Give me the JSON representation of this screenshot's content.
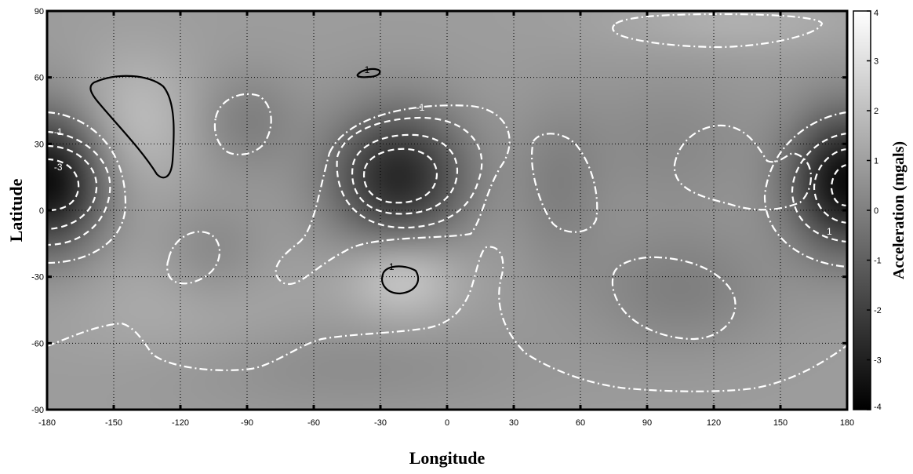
{
  "chart_data": {
    "type": "heatmap",
    "title": "",
    "xlabel": "Longitude",
    "ylabel": "Latitude",
    "xlim": [
      -180,
      180
    ],
    "ylim": [
      -90,
      90
    ],
    "x_ticks": [
      -180,
      -150,
      -120,
      -90,
      -60,
      -30,
      0,
      30,
      60,
      90,
      120,
      150,
      180
    ],
    "y_ticks": [
      -90,
      -60,
      -30,
      0,
      30,
      60,
      90
    ],
    "grid": true,
    "colormap": "gray",
    "colorbar": {
      "label": "Acceleration (mgals)",
      "range": [
        -4,
        4
      ],
      "ticks": [
        -4,
        -3,
        -2,
        -1,
        0,
        1,
        2,
        3,
        4
      ]
    },
    "anomalies": [
      {
        "lon": -180,
        "lat": 13,
        "amp": -4.5,
        "sx": 18,
        "sy": 22
      },
      {
        "lon": 180,
        "lat": 13,
        "amp": -4.5,
        "sx": 18,
        "sy": 22
      },
      {
        "lon": -22,
        "lat": 15,
        "amp": -3.6,
        "sx": 22,
        "sy": 22
      },
      {
        "lon": -140,
        "lat": 40,
        "amp": 1.0,
        "sx": 20,
        "sy": 22
      },
      {
        "lon": -20,
        "lat": -30,
        "amp": 1.5,
        "sx": 18,
        "sy": 14
      },
      {
        "lon": -90,
        "lat": 40,
        "amp": -0.9,
        "sx": 16,
        "sy": 16
      },
      {
        "lon": -105,
        "lat": -20,
        "amp": -0.7,
        "sx": 16,
        "sy": 16
      },
      {
        "lon": 50,
        "lat": 10,
        "amp": -0.8,
        "sx": 14,
        "sy": 26
      },
      {
        "lon": 105,
        "lat": -35,
        "amp": -0.9,
        "sx": 30,
        "sy": 20
      },
      {
        "lon": 100,
        "lat": 30,
        "amp": -0.6,
        "sx": 30,
        "sy": 22
      },
      {
        "lon": -50,
        "lat": -70,
        "amp": -0.5,
        "sx": 60,
        "sy": 15
      },
      {
        "lon": 130,
        "lat": 85,
        "amp": 0.6,
        "sx": 40,
        "sy": 10
      },
      {
        "lon": -120,
        "lat": -45,
        "amp": 0.5,
        "sx": 40,
        "sy": 20
      }
    ],
    "contour_labels": [
      {
        "text": "-1",
        "lon": -175,
        "lat": 34,
        "color": "white"
      },
      {
        "text": "-3",
        "lon": -175,
        "lat": 18,
        "color": "white"
      },
      {
        "text": "1",
        "lon": -36,
        "lat": 62,
        "color": "black"
      },
      {
        "text": "-1",
        "lon": -12,
        "lat": 45,
        "color": "white"
      },
      {
        "text": "1",
        "lon": -25,
        "lat": -27,
        "color": "black"
      },
      {
        "text": "1",
        "lon": 172,
        "lat": -11,
        "color": "white"
      }
    ]
  }
}
